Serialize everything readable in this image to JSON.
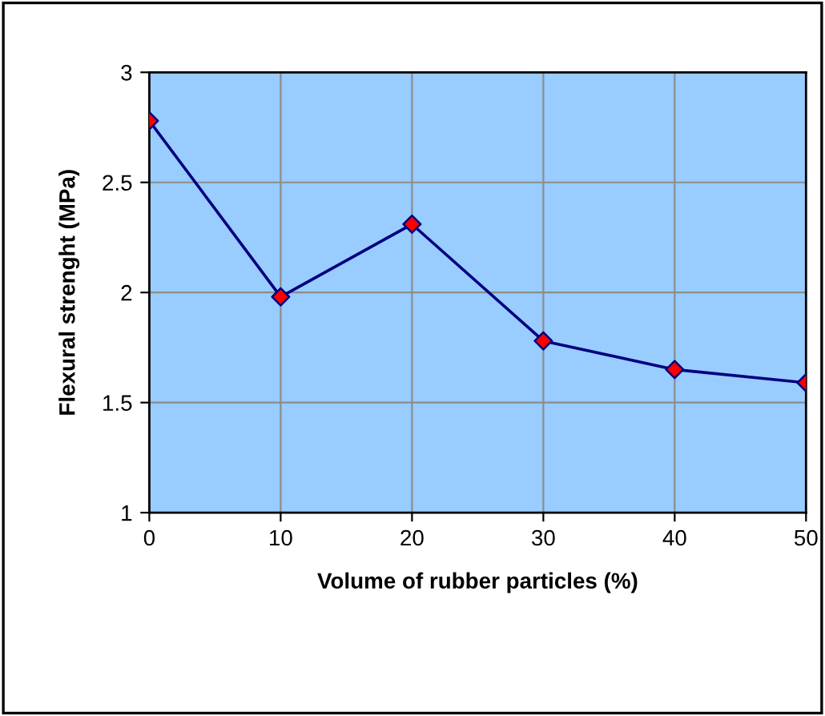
{
  "chart_data": {
    "type": "line",
    "xlabel": "Volume of rubber particles (%)",
    "ylabel": "Flexural strenght (MPa)",
    "x": [
      0,
      10,
      20,
      30,
      40,
      50
    ],
    "series": [
      {
        "color": "#000080",
        "colors": [
          "#ff0000",
          "#ff0000",
          "#ff0000",
          "#ff0000",
          "#ff0000",
          "#ff0000"
        ],
        "values": [
          2.78,
          1.98,
          2.31,
          1.78,
          1.65,
          1.59
        ]
      }
    ],
    "xlim": [
      0,
      50
    ],
    "xticks": [
      0,
      10,
      20,
      30,
      40,
      50
    ],
    "ylim": [
      1,
      3
    ],
    "yticks": [
      1,
      1.5,
      2,
      2.5,
      3
    ],
    "grid": true,
    "marker": "diamond",
    "line_style": "solid"
  }
}
